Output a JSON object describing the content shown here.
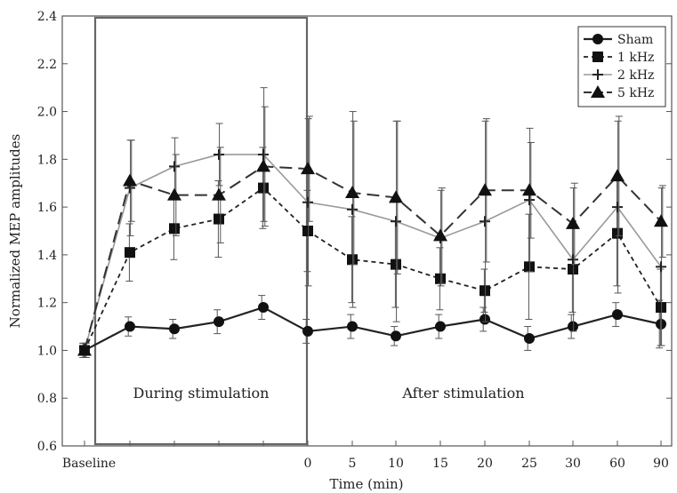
{
  "chart_data": {
    "type": "line",
    "title": "",
    "xlabel": "Time (min)",
    "ylabel": "Normalized MEP amplitudes",
    "ylim": [
      0.6,
      2.4
    ],
    "yticks": [
      "0.6",
      "0.8",
      "1.0",
      "1.2",
      "1.4",
      "1.6",
      "1.8",
      "2.0",
      "2.2",
      "2.4"
    ],
    "categories": [
      "Baseline",
      "",
      "",
      "",
      "",
      "0",
      "5",
      "10",
      "15",
      "20",
      "25",
      "30",
      "60",
      "90"
    ],
    "grid": false,
    "legend_position": "top-right",
    "regions": [
      {
        "label": "During stimulation",
        "boxed": true
      },
      {
        "label": "After stimulation",
        "boxed": false
      }
    ],
    "series": [
      {
        "name": "Sham",
        "marker": "circle",
        "line": "solid",
        "values": [
          1.0,
          1.1,
          1.09,
          1.12,
          1.18,
          1.08,
          1.1,
          1.06,
          1.1,
          1.13,
          1.05,
          1.1,
          1.15,
          1.11
        ],
        "errors": [
          0.03,
          0.04,
          0.04,
          0.05,
          0.05,
          0.05,
          0.05,
          0.04,
          0.05,
          0.05,
          0.05,
          0.05,
          0.05,
          0.1
        ]
      },
      {
        "name": "1 kHz",
        "marker": "square",
        "line": "dotted",
        "values": [
          1.0,
          1.41,
          1.51,
          1.55,
          1.68,
          1.5,
          1.38,
          1.36,
          1.3,
          1.25,
          1.35,
          1.34,
          1.49,
          1.18
        ],
        "errors": [
          0.03,
          0.12,
          0.13,
          0.16,
          0.17,
          0.17,
          0.18,
          0.18,
          0.13,
          0.09,
          0.22,
          0.18,
          0.22,
          0.16
        ]
      },
      {
        "name": "2 kHz",
        "marker": "plus",
        "line": "solid-gray",
        "values": [
          1.0,
          1.68,
          1.77,
          1.82,
          1.82,
          1.62,
          1.59,
          1.54,
          1.47,
          1.54,
          1.63,
          1.38,
          1.6,
          1.35
        ],
        "errors": [
          0.03,
          0.2,
          0.12,
          0.13,
          0.28,
          0.35,
          0.41,
          0.42,
          0.2,
          0.42,
          0.3,
          0.3,
          0.36,
          0.33
        ]
      },
      {
        "name": "5 kHz",
        "marker": "triangle",
        "line": "dashed",
        "values": [
          1.0,
          1.71,
          1.65,
          1.65,
          1.77,
          1.76,
          1.66,
          1.64,
          1.48,
          1.67,
          1.67,
          1.53,
          1.73,
          1.54
        ],
        "errors": [
          0.03,
          0.17,
          0.17,
          0.2,
          0.25,
          0.22,
          0.3,
          0.32,
          0.2,
          0.3,
          0.2,
          0.17,
          0.25,
          0.15
        ]
      }
    ]
  }
}
